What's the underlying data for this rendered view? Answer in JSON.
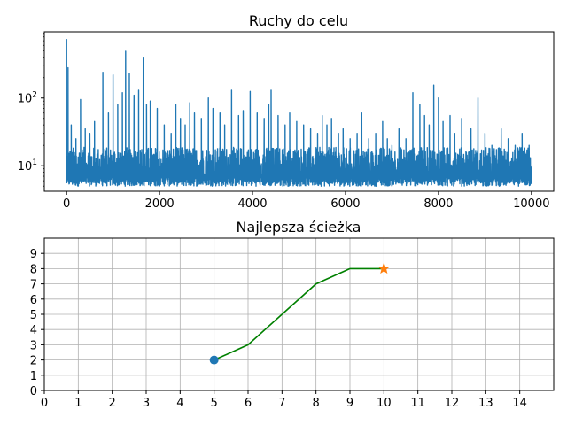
{
  "chart_data": [
    {
      "type": "line",
      "title": "Ruchy do celu",
      "xlabel": "",
      "ylabel": "",
      "yscale": "log",
      "xlim": [
        -480,
        10480
      ],
      "ylim": [
        4.2,
        950
      ],
      "xticks": [
        0,
        2000,
        4000,
        6000,
        8000,
        10000
      ],
      "xtick_labels": [
        "0",
        "2000",
        "4000",
        "6000",
        "8000",
        "10000"
      ],
      "yticks": [
        10,
        100
      ],
      "ytick_labels": [
        {
          "base": "10",
          "exp": "1"
        },
        {
          "base": "10",
          "exp": "2"
        }
      ],
      "grid": false,
      "series": [
        {
          "color": "#1f77b4",
          "n_points": 10000,
          "baseline": 8,
          "min": 5,
          "peaks": [
            {
              "x": 0,
              "y": 730
            },
            {
              "x": 30,
              "y": 280
            },
            {
              "x": 100,
              "y": 40
            },
            {
              "x": 200,
              "y": 25
            },
            {
              "x": 300,
              "y": 95
            },
            {
              "x": 400,
              "y": 35
            },
            {
              "x": 500,
              "y": 30
            },
            {
              "x": 600,
              "y": 45
            },
            {
              "x": 780,
              "y": 240
            },
            {
              "x": 900,
              "y": 60
            },
            {
              "x": 1000,
              "y": 220
            },
            {
              "x": 1100,
              "y": 80
            },
            {
              "x": 1200,
              "y": 120
            },
            {
              "x": 1270,
              "y": 490
            },
            {
              "x": 1350,
              "y": 230
            },
            {
              "x": 1450,
              "y": 110
            },
            {
              "x": 1550,
              "y": 130
            },
            {
              "x": 1650,
              "y": 400
            },
            {
              "x": 1720,
              "y": 80
            },
            {
              "x": 1800,
              "y": 90
            },
            {
              "x": 1950,
              "y": 70
            },
            {
              "x": 2100,
              "y": 40
            },
            {
              "x": 2250,
              "y": 30
            },
            {
              "x": 2350,
              "y": 80
            },
            {
              "x": 2450,
              "y": 50
            },
            {
              "x": 2550,
              "y": 40
            },
            {
              "x": 2650,
              "y": 85
            },
            {
              "x": 2750,
              "y": 60
            },
            {
              "x": 2900,
              "y": 50
            },
            {
              "x": 3050,
              "y": 100
            },
            {
              "x": 3150,
              "y": 70
            },
            {
              "x": 3300,
              "y": 60
            },
            {
              "x": 3400,
              "y": 40
            },
            {
              "x": 3550,
              "y": 130
            },
            {
              "x": 3700,
              "y": 55
            },
            {
              "x": 3800,
              "y": 65
            },
            {
              "x": 3950,
              "y": 125
            },
            {
              "x": 4100,
              "y": 60
            },
            {
              "x": 4250,
              "y": 50
            },
            {
              "x": 4350,
              "y": 80
            },
            {
              "x": 4400,
              "y": 130
            },
            {
              "x": 4550,
              "y": 55
            },
            {
              "x": 4700,
              "y": 40
            },
            {
              "x": 4800,
              "y": 60
            },
            {
              "x": 4950,
              "y": 45
            },
            {
              "x": 5100,
              "y": 40
            },
            {
              "x": 5250,
              "y": 35
            },
            {
              "x": 5400,
              "y": 30
            },
            {
              "x": 5500,
              "y": 55
            },
            {
              "x": 5600,
              "y": 40
            },
            {
              "x": 5700,
              "y": 50
            },
            {
              "x": 5850,
              "y": 30
            },
            {
              "x": 5950,
              "y": 35
            },
            {
              "x": 6100,
              "y": 25
            },
            {
              "x": 6250,
              "y": 30
            },
            {
              "x": 6350,
              "y": 60
            },
            {
              "x": 6500,
              "y": 25
            },
            {
              "x": 6650,
              "y": 30
            },
            {
              "x": 6800,
              "y": 45
            },
            {
              "x": 6900,
              "y": 25
            },
            {
              "x": 7000,
              "y": 20
            },
            {
              "x": 7150,
              "y": 35
            },
            {
              "x": 7300,
              "y": 25
            },
            {
              "x": 7450,
              "y": 120
            },
            {
              "x": 7600,
              "y": 80
            },
            {
              "x": 7700,
              "y": 55
            },
            {
              "x": 7800,
              "y": 40
            },
            {
              "x": 7900,
              "y": 155
            },
            {
              "x": 8000,
              "y": 100
            },
            {
              "x": 8100,
              "y": 45
            },
            {
              "x": 8250,
              "y": 55
            },
            {
              "x": 8350,
              "y": 30
            },
            {
              "x": 8500,
              "y": 50
            },
            {
              "x": 8700,
              "y": 35
            },
            {
              "x": 8850,
              "y": 100
            },
            {
              "x": 9000,
              "y": 30
            },
            {
              "x": 9150,
              "y": 20
            },
            {
              "x": 9350,
              "y": 35
            },
            {
              "x": 9500,
              "y": 25
            },
            {
              "x": 9650,
              "y": 20
            },
            {
              "x": 9800,
              "y": 30
            },
            {
              "x": 9950,
              "y": 20
            }
          ]
        }
      ]
    },
    {
      "type": "line",
      "title": "Najlepsza ścieżka",
      "xlabel": "",
      "ylabel": "",
      "xlim": [
        0,
        15
      ],
      "ylim": [
        0,
        10
      ],
      "xticks": [
        0,
        1,
        2,
        3,
        4,
        5,
        6,
        7,
        8,
        9,
        10,
        11,
        12,
        13,
        14
      ],
      "xtick_labels": [
        "0",
        "1",
        "2",
        "3",
        "4",
        "5",
        "6",
        "7",
        "8",
        "9",
        "10",
        "11",
        "12",
        "13",
        "14"
      ],
      "yticks": [
        0,
        1,
        2,
        3,
        4,
        5,
        6,
        7,
        8,
        9
      ],
      "ytick_labels": [
        "0",
        "1",
        "2",
        "3",
        "4",
        "5",
        "6",
        "7",
        "8",
        "9"
      ],
      "grid": true,
      "series": [
        {
          "color": "#008000",
          "x": [
            5,
            6,
            7,
            8,
            9,
            10
          ],
          "y": [
            2,
            3,
            5,
            7,
            8,
            8
          ]
        }
      ],
      "start_marker": {
        "x": 5,
        "y": 2,
        "shape": "circle",
        "color": "#1f77b4"
      },
      "goal_marker": {
        "x": 10,
        "y": 8,
        "shape": "star",
        "color": "#ff7f0e"
      }
    }
  ]
}
